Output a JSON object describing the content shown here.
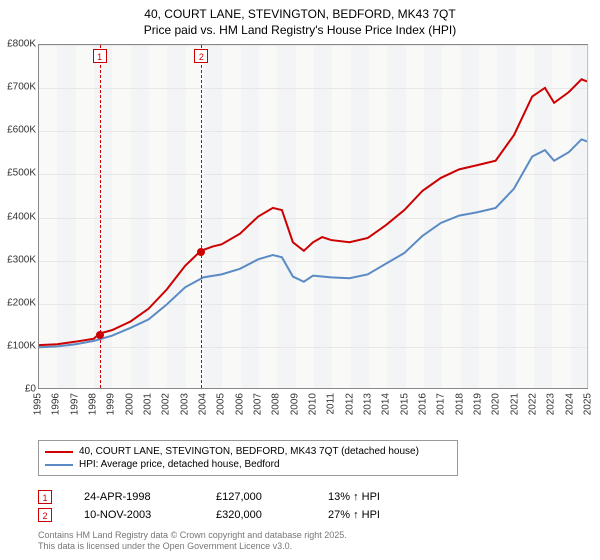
{
  "title_line1": "40, COURT LANE, STEVINGTON, BEDFORD, MK43 7QT",
  "title_line2": "Price paid vs. HM Land Registry's House Price Index (HPI)",
  "chart": {
    "type": "line",
    "x_start": 1995,
    "x_end": 2025,
    "x_step": 1,
    "xticks": [
      1995,
      1996,
      1997,
      1998,
      1999,
      2000,
      2001,
      2002,
      2003,
      2004,
      2005,
      2006,
      2007,
      2008,
      2009,
      2010,
      2011,
      2012,
      2013,
      2014,
      2015,
      2016,
      2017,
      2018,
      2019,
      2020,
      2021,
      2022,
      2023,
      2024,
      2025
    ],
    "y_min": 0,
    "y_max": 800000,
    "y_step": 100000,
    "yticks": [
      0,
      100000,
      200000,
      300000,
      400000,
      500000,
      600000,
      700000,
      800000
    ],
    "yticklabels": [
      "£0",
      "£100K",
      "£200K",
      "£300K",
      "£400K",
      "£500K",
      "£600K",
      "£700K",
      "£800K"
    ],
    "band_color_a": "#f5f5f2",
    "band_color_b": "#e9ecef",
    "grid_color": "#e7e7e7",
    "axis_color": "#888888",
    "background_color": "#ffffff",
    "line_width": 2,
    "tick_fontsize": 10,
    "series": [
      {
        "name": "40, COURT LANE, STEVINGTON, BEDFORD, MK43 7QT (detached house)",
        "color": "#cc0000",
        "points": [
          [
            1995,
            100000
          ],
          [
            1996,
            102000
          ],
          [
            1997,
            108000
          ],
          [
            1998,
            115000
          ],
          [
            1998.31,
            127000
          ],
          [
            1999,
            135000
          ],
          [
            2000,
            155000
          ],
          [
            2001,
            185000
          ],
          [
            2002,
            230000
          ],
          [
            2003,
            285000
          ],
          [
            2003.86,
            320000
          ],
          [
            2004.5,
            330000
          ],
          [
            2005,
            335000
          ],
          [
            2006,
            360000
          ],
          [
            2007,
            400000
          ],
          [
            2007.8,
            420000
          ],
          [
            2008.3,
            415000
          ],
          [
            2008.9,
            340000
          ],
          [
            2009.5,
            320000
          ],
          [
            2010,
            340000
          ],
          [
            2010.5,
            352000
          ],
          [
            2011,
            345000
          ],
          [
            2012,
            340000
          ],
          [
            2013,
            350000
          ],
          [
            2014,
            380000
          ],
          [
            2015,
            415000
          ],
          [
            2016,
            460000
          ],
          [
            2017,
            490000
          ],
          [
            2018,
            510000
          ],
          [
            2019,
            520000
          ],
          [
            2020,
            530000
          ],
          [
            2021,
            590000
          ],
          [
            2022,
            680000
          ],
          [
            2022.7,
            700000
          ],
          [
            2023.2,
            665000
          ],
          [
            2024,
            690000
          ],
          [
            2024.7,
            720000
          ],
          [
            2025,
            715000
          ]
        ]
      },
      {
        "name": "HPI: Average price, detached house, Bedford",
        "color": "#5b8bc4",
        "points": [
          [
            1995,
            95000
          ],
          [
            1996,
            97000
          ],
          [
            1997,
            102000
          ],
          [
            1998,
            110000
          ],
          [
            1999,
            122000
          ],
          [
            2000,
            140000
          ],
          [
            2001,
            160000
          ],
          [
            2002,
            195000
          ],
          [
            2003,
            235000
          ],
          [
            2004,
            258000
          ],
          [
            2005,
            265000
          ],
          [
            2006,
            278000
          ],
          [
            2007,
            300000
          ],
          [
            2007.8,
            310000
          ],
          [
            2008.3,
            305000
          ],
          [
            2008.9,
            260000
          ],
          [
            2009.5,
            248000
          ],
          [
            2010,
            262000
          ],
          [
            2011,
            258000
          ],
          [
            2012,
            256000
          ],
          [
            2013,
            265000
          ],
          [
            2014,
            290000
          ],
          [
            2015,
            315000
          ],
          [
            2016,
            355000
          ],
          [
            2017,
            385000
          ],
          [
            2018,
            402000
          ],
          [
            2019,
            410000
          ],
          [
            2020,
            420000
          ],
          [
            2021,
            465000
          ],
          [
            2022,
            540000
          ],
          [
            2022.7,
            555000
          ],
          [
            2023.2,
            530000
          ],
          [
            2024,
            550000
          ],
          [
            2024.7,
            580000
          ],
          [
            2025,
            575000
          ]
        ]
      }
    ],
    "markers": [
      {
        "n": "1",
        "x": 1998.31,
        "y": 127000
      },
      {
        "n": "2",
        "x": 2003.86,
        "y": 320000
      }
    ]
  },
  "legend": {
    "items": [
      {
        "color": "#cc0000",
        "label": "40, COURT LANE, STEVINGTON, BEDFORD, MK43 7QT (detached house)"
      },
      {
        "color": "#5b8bc4",
        "label": "HPI: Average price, detached house, Bedford"
      }
    ]
  },
  "sales": [
    {
      "n": "1",
      "date": "24-APR-1998",
      "price": "£127,000",
      "delta": "13% ↑ HPI"
    },
    {
      "n": "2",
      "date": "10-NOV-2003",
      "price": "£320,000",
      "delta": "27% ↑ HPI"
    }
  ],
  "footer_line1": "Contains HM Land Registry data © Crown copyright and database right 2025.",
  "footer_line2": "This data is licensed under the Open Government Licence v3.0."
}
